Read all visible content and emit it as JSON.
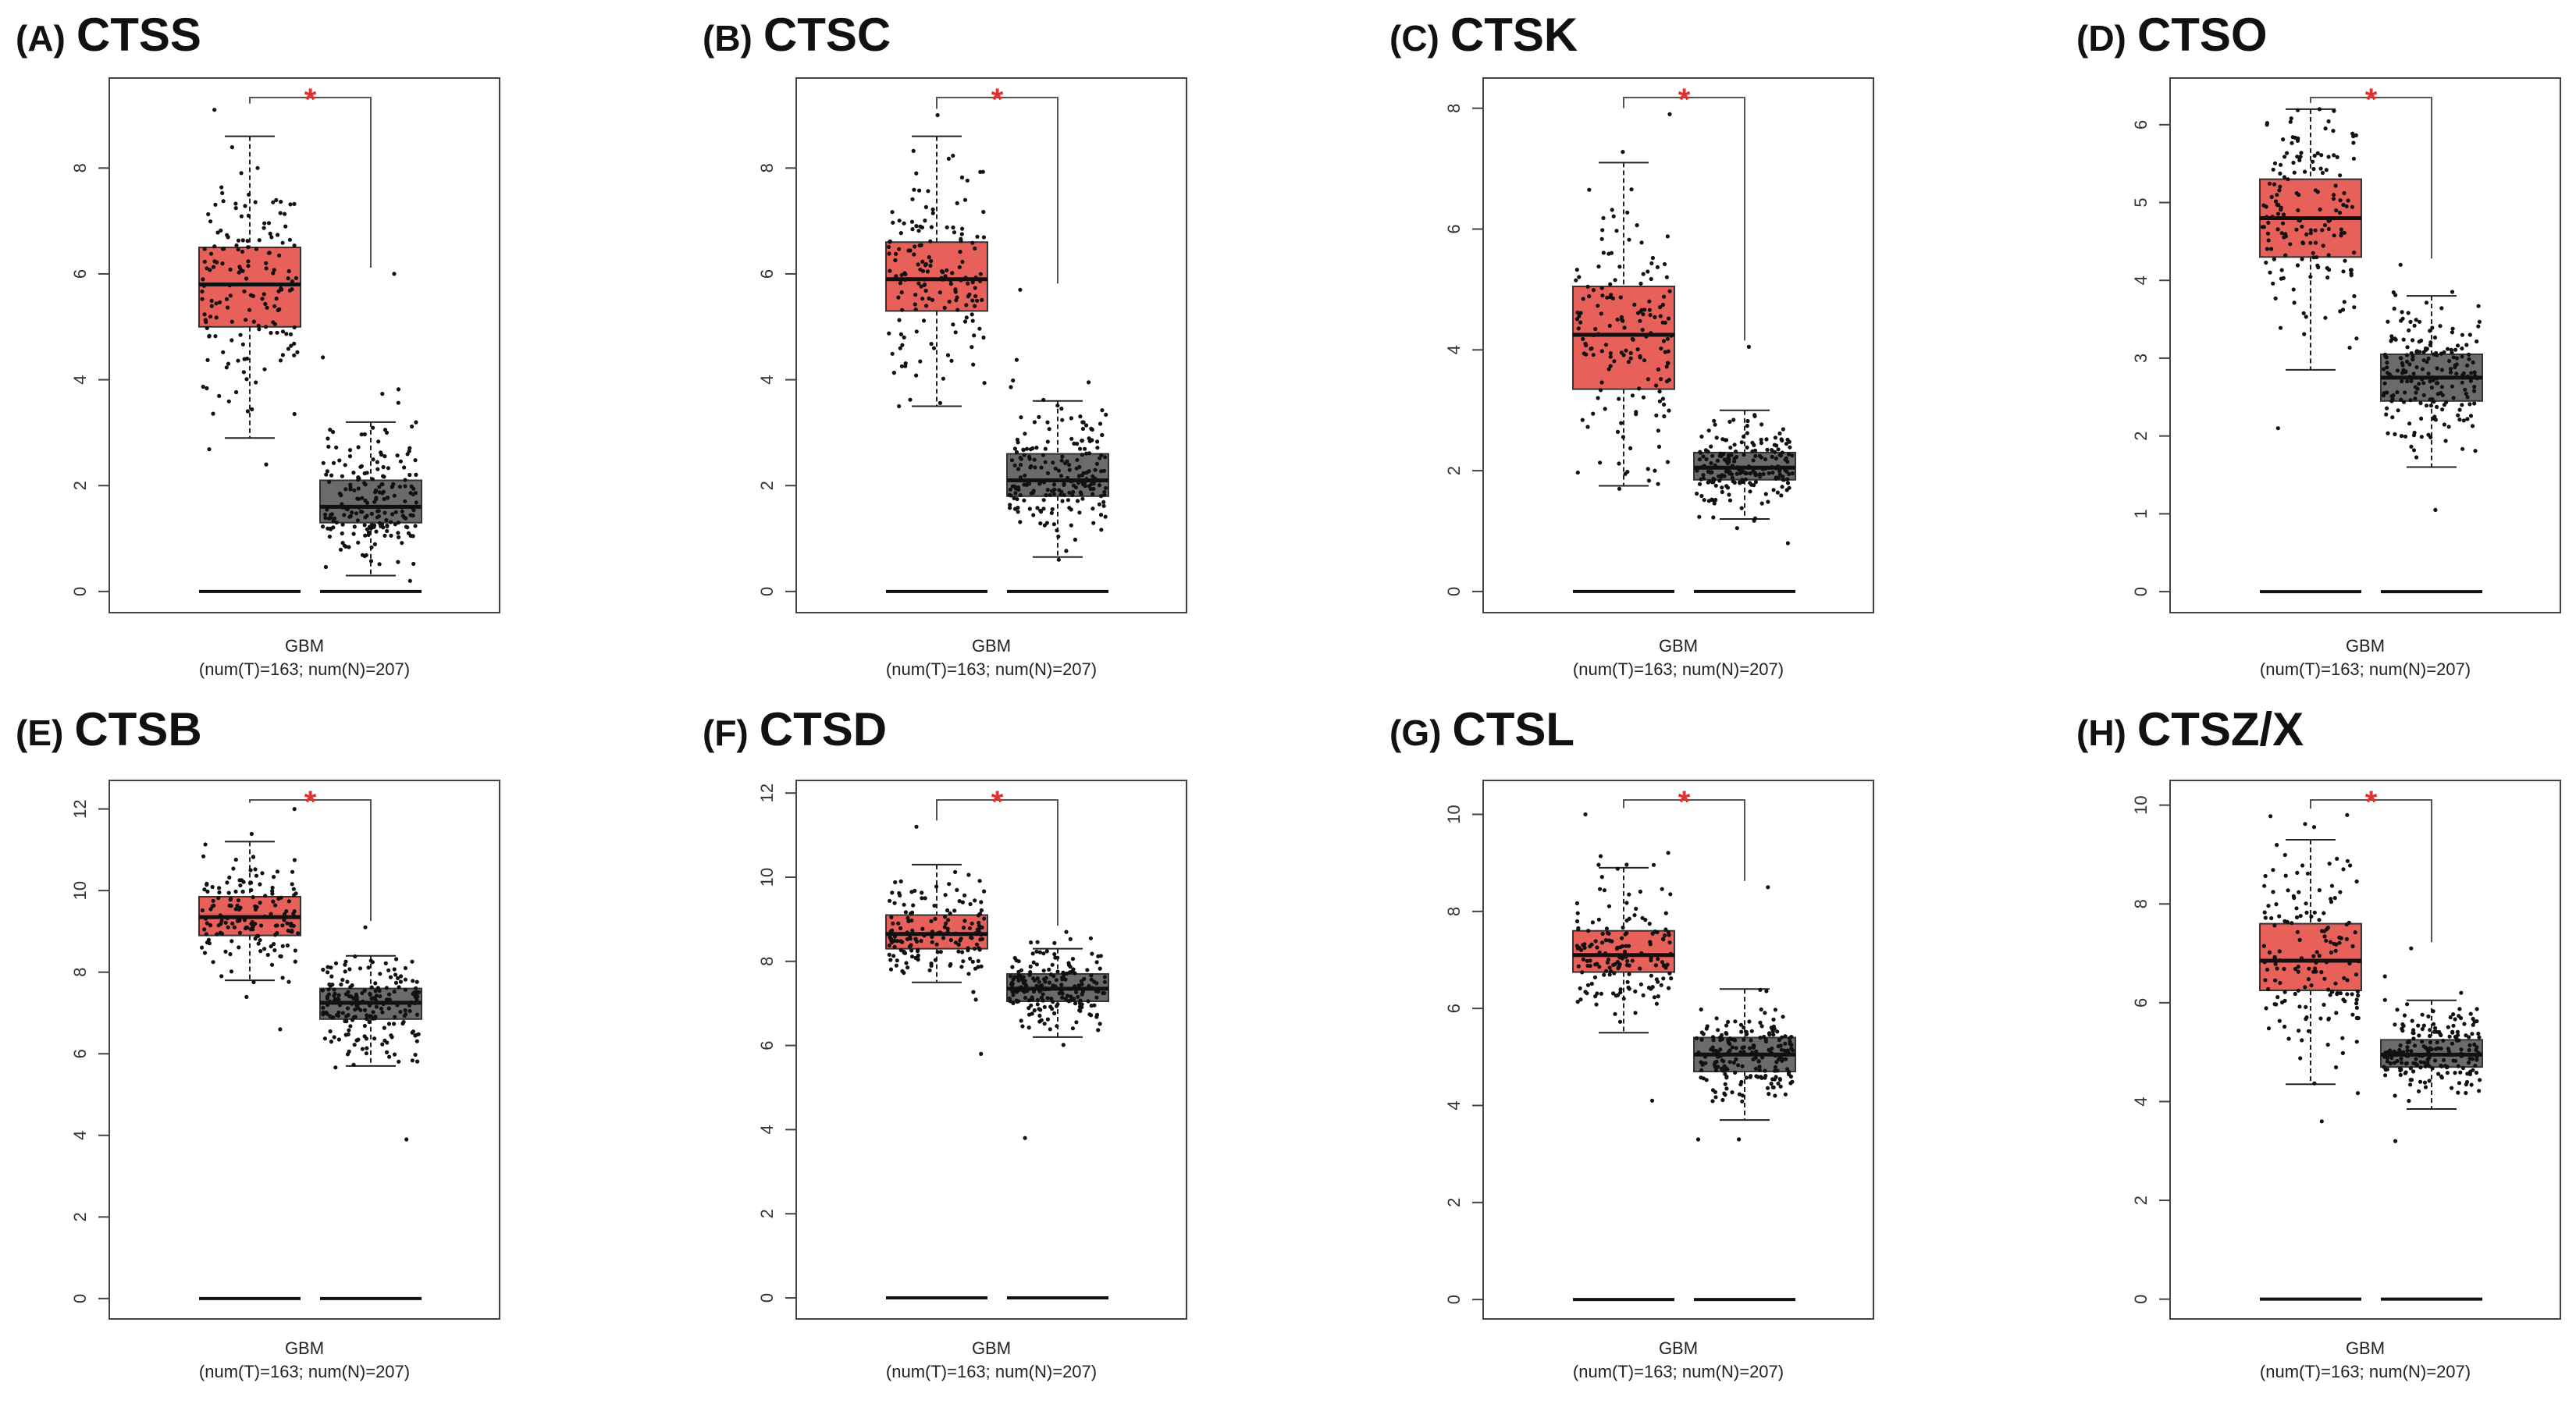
{
  "colors": {
    "tumor": "#e8605a",
    "normal": "#6b6b6b",
    "significance": "#e03030",
    "points": "#111111"
  },
  "chart_data": [
    {
      "type": "box",
      "panel_label": "(A)",
      "gene": "CTSS",
      "category": "GBM",
      "n_label": "(num(T)=163; num(N)=207)",
      "significance": "*",
      "yticks": [
        0,
        2,
        4,
        6,
        8
      ],
      "ylim": [
        -0.4,
        9.7
      ],
      "tumor": {
        "whisker_low": 2.9,
        "q1": 5.0,
        "median": 5.8,
        "q3": 6.5,
        "whisker_high": 8.6,
        "min": 2.4,
        "max": 9.1,
        "n": 163
      },
      "normal": {
        "whisker_low": 0.3,
        "q1": 1.3,
        "median": 1.6,
        "q3": 2.1,
        "whisker_high": 3.2,
        "min": 0.2,
        "max": 6.0,
        "n": 207
      }
    },
    {
      "type": "box",
      "panel_label": "(B)",
      "gene": "CTSC",
      "category": "GBM",
      "n_label": "(num(T)=163; num(N)=207)",
      "significance": "*",
      "yticks": [
        0,
        2,
        4,
        6,
        8
      ],
      "ylim": [
        -0.4,
        9.7
      ],
      "tumor": {
        "whisker_low": 3.5,
        "q1": 5.3,
        "median": 5.9,
        "q3": 6.6,
        "whisker_high": 8.6,
        "min": 3.5,
        "max": 9.0,
        "n": 163
      },
      "normal": {
        "whisker_low": 0.65,
        "q1": 1.8,
        "median": 2.1,
        "q3": 2.6,
        "whisker_high": 3.6,
        "min": 0.6,
        "max": 5.7,
        "n": 207
      }
    },
    {
      "type": "box",
      "panel_label": "(C)",
      "gene": "CTSK",
      "category": "GBM",
      "n_label": "(num(T)=163; num(N)=207)",
      "significance": "*",
      "yticks": [
        0,
        2,
        4,
        6,
        8
      ],
      "ylim": [
        -0.35,
        8.5
      ],
      "tumor": {
        "whisker_low": 1.75,
        "q1": 3.35,
        "median": 4.25,
        "q3": 5.05,
        "whisker_high": 7.1,
        "min": 1.7,
        "max": 7.9,
        "n": 163
      },
      "normal": {
        "whisker_low": 1.2,
        "q1": 1.85,
        "median": 2.05,
        "q3": 2.3,
        "whisker_high": 3.0,
        "min": 0.8,
        "max": 4.05,
        "n": 207
      }
    },
    {
      "type": "box",
      "panel_label": "(D)",
      "gene": "CTSO",
      "category": "GBM",
      "n_label": "(num(T)=163; num(N)=207)",
      "significance": "*",
      "yticks": [
        0,
        1,
        2,
        3,
        4,
        5,
        6
      ],
      "ylim": [
        -0.27,
        6.6
      ],
      "tumor": {
        "whisker_low": 2.85,
        "q1": 4.3,
        "median": 4.8,
        "q3": 5.3,
        "whisker_high": 6.2,
        "min": 2.1,
        "max": 6.2,
        "n": 163
      },
      "normal": {
        "whisker_low": 1.6,
        "q1": 2.45,
        "median": 2.75,
        "q3": 3.05,
        "whisker_high": 3.8,
        "min": 1.05,
        "max": 4.2,
        "n": 207
      }
    },
    {
      "type": "box",
      "panel_label": "(E)",
      "gene": "CTSB",
      "category": "GBM",
      "n_label": "(num(T)=163; num(N)=207)",
      "significance": "*",
      "yticks": [
        0,
        2,
        4,
        6,
        8,
        10,
        12
      ],
      "ylim": [
        -0.5,
        12.7
      ],
      "tumor": {
        "whisker_low": 7.8,
        "q1": 8.9,
        "median": 9.35,
        "q3": 9.85,
        "whisker_high": 11.2,
        "min": 6.6,
        "max": 12.0,
        "n": 163
      },
      "normal": {
        "whisker_low": 5.7,
        "q1": 6.85,
        "median": 7.25,
        "q3": 7.6,
        "whisker_high": 8.4,
        "min": 3.9,
        "max": 9.1,
        "n": 207
      }
    },
    {
      "type": "box",
      "panel_label": "(F)",
      "gene": "CTSD",
      "category": "GBM",
      "n_label": "(num(T)=163; num(N)=207)",
      "significance": "*",
      "yticks": [
        0,
        2,
        4,
        6,
        8,
        10,
        12
      ],
      "ylim": [
        -0.5,
        12.3
      ],
      "tumor": {
        "whisker_low": 7.5,
        "q1": 8.3,
        "median": 8.65,
        "q3": 9.1,
        "whisker_high": 10.3,
        "min": 5.8,
        "max": 11.2,
        "n": 163
      },
      "normal": {
        "whisker_low": 6.2,
        "q1": 7.05,
        "median": 7.35,
        "q3": 7.7,
        "whisker_high": 8.3,
        "min": 3.8,
        "max": 8.7,
        "n": 207
      }
    },
    {
      "type": "box",
      "panel_label": "(G)",
      "gene": "CTSL",
      "category": "GBM",
      "n_label": "(num(T)=163; num(N)=207)",
      "significance": "*",
      "yticks": [
        0,
        2,
        4,
        6,
        8,
        10
      ],
      "ylim": [
        -0.4,
        10.7
      ],
      "tumor": {
        "whisker_low": 5.5,
        "q1": 6.75,
        "median": 7.1,
        "q3": 7.6,
        "whisker_high": 8.9,
        "min": 4.1,
        "max": 10.0,
        "n": 163
      },
      "normal": {
        "whisker_low": 3.7,
        "q1": 4.7,
        "median": 5.05,
        "q3": 5.4,
        "whisker_high": 6.4,
        "min": 3.3,
        "max": 8.5,
        "n": 207
      }
    },
    {
      "type": "box",
      "panel_label": "(H)",
      "gene": "CTSZ/X",
      "category": "GBM",
      "n_label": "(num(T)=163; num(N)=207)",
      "significance": "*",
      "yticks": [
        0,
        2,
        4,
        6,
        8,
        10
      ],
      "ylim": [
        -0.4,
        10.5
      ],
      "tumor": {
        "whisker_low": 4.35,
        "q1": 6.25,
        "median": 6.85,
        "q3": 7.6,
        "whisker_high": 9.3,
        "min": 3.6,
        "max": 9.8,
        "n": 163
      },
      "normal": {
        "whisker_low": 3.85,
        "q1": 4.7,
        "median": 4.95,
        "q3": 5.25,
        "whisker_high": 6.05,
        "min": 3.2,
        "max": 7.1,
        "n": 207
      }
    }
  ]
}
